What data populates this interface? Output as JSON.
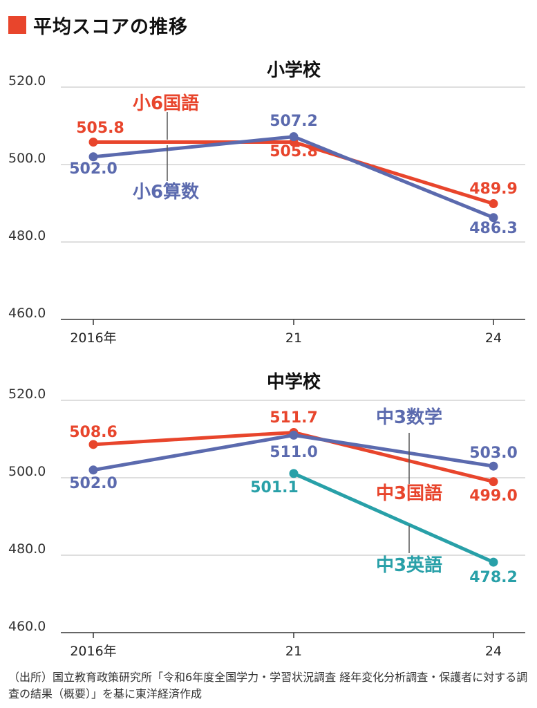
{
  "header": {
    "title": "平均スコアの推移",
    "accent": "#e8452c"
  },
  "colors": {
    "orange": "#e8452c",
    "blue": "#5b6aae",
    "teal": "#28a0a8",
    "axis": "#333333",
    "grid": "#bdbdbd"
  },
  "chart_data": [
    {
      "type": "line",
      "title": "小学校",
      "categories": [
        "2016年",
        "21",
        "24"
      ],
      "ylim": [
        460,
        520
      ],
      "yticks": [
        "520.0",
        "500.0",
        "480.0",
        "460.0"
      ],
      "series": [
        {
          "name": "小6国語",
          "color": "orange",
          "values": [
            505.8,
            505.8,
            489.9
          ],
          "labels": [
            "505.8",
            "505.8",
            "489.9"
          ]
        },
        {
          "name": "小6算数",
          "color": "blue",
          "values": [
            502.0,
            507.2,
            486.3
          ],
          "labels": [
            "502.0",
            "507.2",
            "486.3"
          ]
        }
      ]
    },
    {
      "type": "line",
      "title": "中学校",
      "categories": [
        "2016年",
        "21",
        "24"
      ],
      "ylim": [
        460,
        520
      ],
      "yticks": [
        "520.0",
        "500.0",
        "480.0",
        "460.0"
      ],
      "series": [
        {
          "name": "中3国語",
          "color": "orange",
          "values": [
            508.6,
            511.7,
            499.0
          ],
          "labels": [
            "508.6",
            "511.7",
            "499.0"
          ]
        },
        {
          "name": "中3数学",
          "color": "blue",
          "values": [
            502.0,
            511.0,
            503.0
          ],
          "labels": [
            "502.0",
            "511.0",
            "503.0"
          ]
        },
        {
          "name": "中3英語",
          "color": "teal",
          "values": [
            null,
            501.1,
            478.2
          ],
          "labels": [
            "",
            "501.1",
            "478.2"
          ]
        }
      ]
    }
  ],
  "source": "（出所）国立教育政策研究所「令和6年度全国学力・学習状況調査 経年変化分析調査・保護者に対する調査の結果（概要）」を基に東洋経済作成"
}
